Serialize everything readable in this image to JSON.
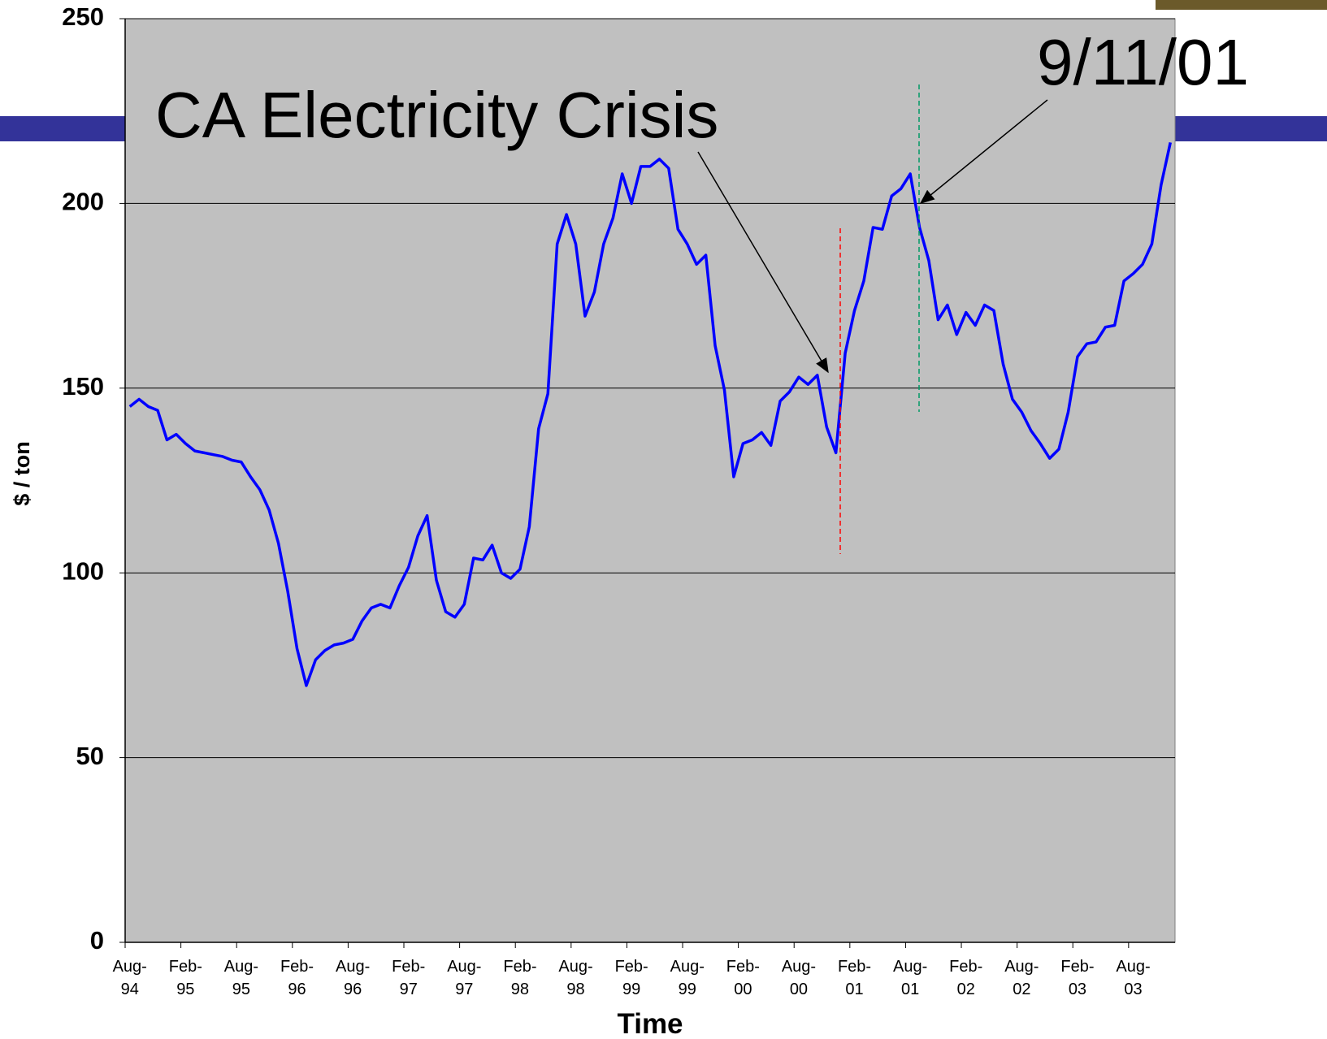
{
  "chart_data": {
    "type": "line",
    "xlabel": "Time",
    "ylabel": "$ / ton",
    "annotations": [
      "CA Electricity Crisis",
      "9/11/01"
    ],
    "categories": [
      "Aug-94",
      null,
      null,
      null,
      null,
      null,
      "Feb-95",
      null,
      null,
      null,
      null,
      null,
      "Aug-95",
      null,
      null,
      null,
      null,
      null,
      "Feb-96",
      null,
      null,
      null,
      null,
      null,
      "Aug-96",
      null,
      null,
      null,
      null,
      null,
      "Feb-97",
      null,
      null,
      null,
      null,
      null,
      "Aug-97",
      null,
      null,
      null,
      null,
      null,
      "Feb-98",
      null,
      null,
      null,
      null,
      null,
      "Aug-98",
      null,
      null,
      null,
      null,
      null,
      "Feb-99",
      null,
      null,
      null,
      null,
      null,
      "Aug-99",
      null,
      null,
      null,
      null,
      null,
      "Feb-00",
      null,
      null,
      null,
      null,
      null,
      "Aug-00",
      null,
      null,
      null,
      null,
      null,
      "Feb-01",
      null,
      null,
      null,
      null,
      null,
      "Aug-01",
      null,
      null,
      null,
      null,
      null,
      "Feb-02",
      null,
      null,
      null,
      null,
      null,
      "Aug-02",
      null,
      null,
      null,
      null,
      null,
      "Feb-03",
      null,
      null,
      null,
      null,
      null,
      "Aug-03",
      null,
      null,
      null,
      null
    ],
    "values": [
      145,
      147,
      145,
      144,
      136,
      137.5,
      135,
      133,
      132.5,
      132,
      131.5,
      130.5,
      130,
      126,
      122.5,
      117,
      108,
      95,
      79.5,
      69.5,
      76.5,
      79,
      80.5,
      81,
      82,
      87,
      90.5,
      91.5,
      90.5,
      96.5,
      101.5,
      110,
      115.5,
      98,
      89.5,
      88,
      91.5,
      104,
      103.5,
      107.5,
      100,
      98.5,
      101,
      112.5,
      139,
      148.5,
      189,
      197,
      189,
      169.5,
      176,
      189,
      196,
      208,
      200,
      210,
      210,
      212,
      209.5,
      193,
      189,
      183.5,
      186,
      161.5,
      149.5,
      126,
      135,
      136,
      138,
      134.5,
      146.5,
      149,
      153,
      151,
      153.5,
      139.5,
      132.5,
      159.5,
      171,
      179,
      193.5,
      193,
      202,
      204,
      208,
      193.5,
      184.5,
      168.5,
      172.5,
      164.5,
      170.5,
      167,
      172.5,
      171,
      156.5,
      147,
      143.5,
      138.5,
      135,
      131,
      133.5,
      143.5,
      158.5,
      162,
      162.5,
      166.5,
      167,
      179,
      181,
      183.5,
      189,
      205,
      216.5
    ],
    "color": "#0000ff",
    "ylim": [
      0,
      250
    ],
    "yticks": [
      0,
      50,
      100,
      150,
      200,
      250
    ],
    "grid": true
  }
}
